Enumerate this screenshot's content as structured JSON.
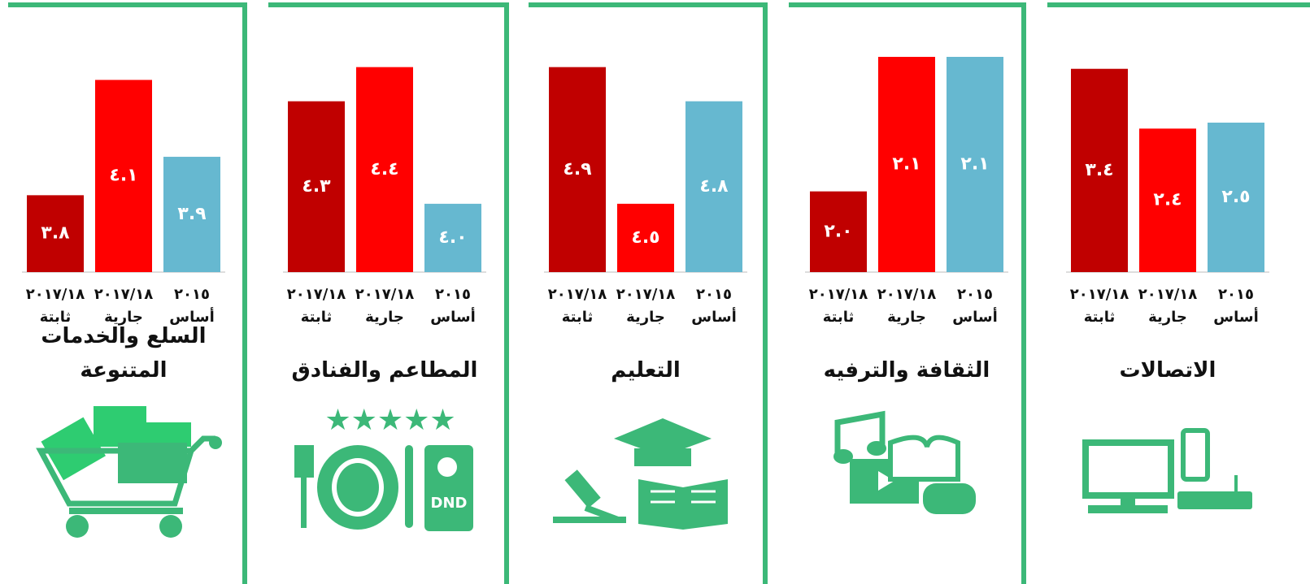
{
  "chart_data": [
    {
      "type": "bar",
      "title": "الاتصالات",
      "categories": [
        "٢٠١٥",
        "٢٠١٧/١٨",
        "٢٠١٧/١٨"
      ],
      "category_notes": [
        "أساس",
        "جارية",
        "ثابتة"
      ],
      "values": [
        2.5,
        2.4,
        3.4
      ],
      "value_labels": [
        "٢.٥",
        "٢.٤",
        "٣.٤"
      ],
      "colors": [
        "#66b8d0",
        "#ff0000",
        "#c00000"
      ],
      "ylim": [
        0,
        3.6
      ]
    },
    {
      "type": "bar",
      "title": "الثقافة والترفيه",
      "categories": [
        "٢٠١٥",
        "٢٠١٧/١٨",
        "٢٠١٧/١٨"
      ],
      "category_notes": [
        "أساس",
        "جارية",
        "ثابتة"
      ],
      "values": [
        2.1,
        2.1,
        2.0
      ],
      "value_labels": [
        "٢.١",
        "٢.١",
        "٢.٠"
      ],
      "colors": [
        "#66b8d0",
        "#ff0000",
        "#c00000"
      ],
      "ylim": [
        1.94,
        2.1
      ]
    },
    {
      "type": "bar",
      "title": "التعليم",
      "categories": [
        "٢٠١٥",
        "٢٠١٧/١٨",
        "٢٠١٧/١٨"
      ],
      "category_notes": [
        "أساس",
        "جارية",
        "ثابتة"
      ],
      "values": [
        4.8,
        4.5,
        4.9
      ],
      "value_labels": [
        "٤.٨",
        "٤.٥",
        "٤.٩"
      ],
      "colors": [
        "#66b8d0",
        "#ff0000",
        "#c00000"
      ],
      "ylim": [
        4.3,
        4.93
      ]
    },
    {
      "type": "bar",
      "title": "المطاعم والفنادق",
      "categories": [
        "٢٠١٥",
        "٢٠١٧/١٨",
        "٢٠١٧/١٨"
      ],
      "category_notes": [
        "أساس",
        "جارية",
        "ثابتة"
      ],
      "values": [
        4.0,
        4.4,
        4.3
      ],
      "value_labels": [
        "٤.٠",
        "٤.٤",
        "٤.٣"
      ],
      "colors": [
        "#66b8d0",
        "#ff0000",
        "#c00000"
      ],
      "ylim": [
        3.8,
        4.43
      ]
    },
    {
      "type": "bar",
      "title": "السلع والخدمات المتنوعة",
      "categories": [
        "٢٠١٥",
        "٢٠١٧/١٨",
        "٢٠١٧/١٨"
      ],
      "category_notes": [
        "أساس",
        "جارية",
        "ثابتة"
      ],
      "values": [
        3.9,
        4.1,
        3.8
      ],
      "value_labels": [
        "٣.٩",
        "٤.١",
        "٣.٨"
      ],
      "colors": [
        "#66b8d0",
        "#ff0000",
        "#c00000"
      ],
      "ylim": [
        3.6,
        4.16
      ]
    }
  ]
}
